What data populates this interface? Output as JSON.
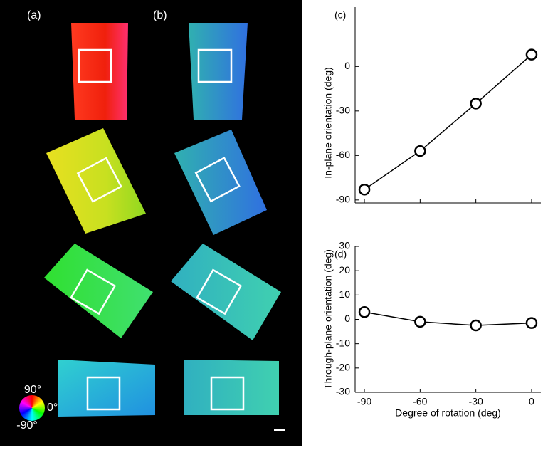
{
  "panels": {
    "a": "(a)",
    "b": "(b)"
  },
  "color_wheel": {
    "top": "90°",
    "right": "0°",
    "bottom": "-90°"
  },
  "chart_data": [
    {
      "type": "line",
      "label": "(c)",
      "ylabel": "In-plane orientation (deg)",
      "x": [
        -90,
        -60,
        -30,
        0
      ],
      "values": [
        -83,
        -57,
        -25,
        8
      ],
      "color": "#000000",
      "xlim": [
        -95,
        5
      ],
      "ylim": [
        -92,
        40
      ],
      "xticks": [
        -90,
        -60,
        -30,
        0
      ],
      "yticks": [
        -90,
        -60,
        -30,
        0
      ],
      "show_xtick_labels": false
    },
    {
      "type": "line",
      "label": "(d)",
      "ylabel": "Through-plane orientation (deg)",
      "xlabel": "Degree of rotation (deg)",
      "x": [
        -90,
        -60,
        -30,
        0
      ],
      "values": [
        3,
        -1,
        -2.5,
        -1.5
      ],
      "color": "#000000",
      "xlim": [
        -95,
        5
      ],
      "ylim": [
        -30,
        30
      ],
      "xticks": [
        -90,
        -60,
        -30,
        0
      ],
      "yticks": [
        -30,
        -20,
        -10,
        0,
        10,
        20,
        30
      ],
      "show_xtick_labels": true
    }
  ]
}
